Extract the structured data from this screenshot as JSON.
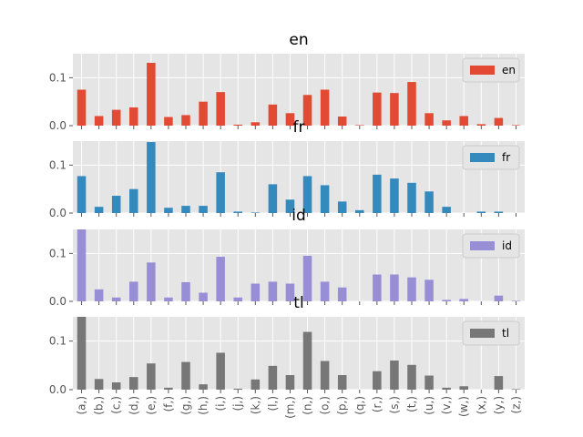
{
  "chart_data": {
    "type": "bar",
    "categories": [
      "(a,)",
      "(b,)",
      "(c,)",
      "(d,)",
      "(e,)",
      "(f,)",
      "(g,)",
      "(h,)",
      "(i,)",
      "(j,)",
      "(k,)",
      "(l,)",
      "(m,)",
      "(n,)",
      "(o,)",
      "(p,)",
      "(q,)",
      "(r,)",
      "(s,)",
      "(t,)",
      "(u,)",
      "(v,)",
      "(w,)",
      "(x,)",
      "(y,)",
      "(z,)"
    ],
    "ylim": [
      0,
      0.15
    ],
    "yticks": [
      "0.0",
      "0.1"
    ],
    "grid": true,
    "legend_position": "top-right",
    "series": [
      {
        "name": "en",
        "title": "en",
        "color": "#E24A33",
        "values": [
          0.075,
          0.02,
          0.033,
          0.038,
          0.131,
          0.018,
          0.022,
          0.05,
          0.07,
          0.002,
          0.007,
          0.044,
          0.026,
          0.064,
          0.075,
          0.019,
          0.001,
          0.069,
          0.068,
          0.091,
          0.026,
          0.011,
          0.02,
          0.003,
          0.016,
          0.001
        ]
      },
      {
        "name": "fr",
        "title": "fr",
        "color": "#348ABD",
        "values": [
          0.077,
          0.013,
          0.036,
          0.05,
          0.148,
          0.011,
          0.015,
          0.015,
          0.085,
          0.003,
          0.001,
          0.06,
          0.028,
          0.077,
          0.058,
          0.024,
          0.006,
          0.08,
          0.072,
          0.063,
          0.045,
          0.013,
          0.0,
          0.003,
          0.003,
          0.0
        ]
      },
      {
        "name": "id",
        "title": "id",
        "color": "#988ED5",
        "values": [
          0.152,
          0.025,
          0.008,
          0.041,
          0.081,
          0.008,
          0.04,
          0.018,
          0.093,
          0.008,
          0.037,
          0.041,
          0.037,
          0.095,
          0.041,
          0.029,
          0.0,
          0.056,
          0.056,
          0.05,
          0.045,
          0.003,
          0.005,
          0.0,
          0.012,
          0.001
        ]
      },
      {
        "name": "tl",
        "title": "tl",
        "color": "#777777",
        "values": [
          0.15,
          0.022,
          0.015,
          0.026,
          0.054,
          0.004,
          0.057,
          0.011,
          0.076,
          0.002,
          0.021,
          0.049,
          0.03,
          0.119,
          0.059,
          0.03,
          0.0,
          0.038,
          0.06,
          0.051,
          0.029,
          0.004,
          0.007,
          0.0,
          0.028,
          0.001
        ]
      }
    ]
  }
}
